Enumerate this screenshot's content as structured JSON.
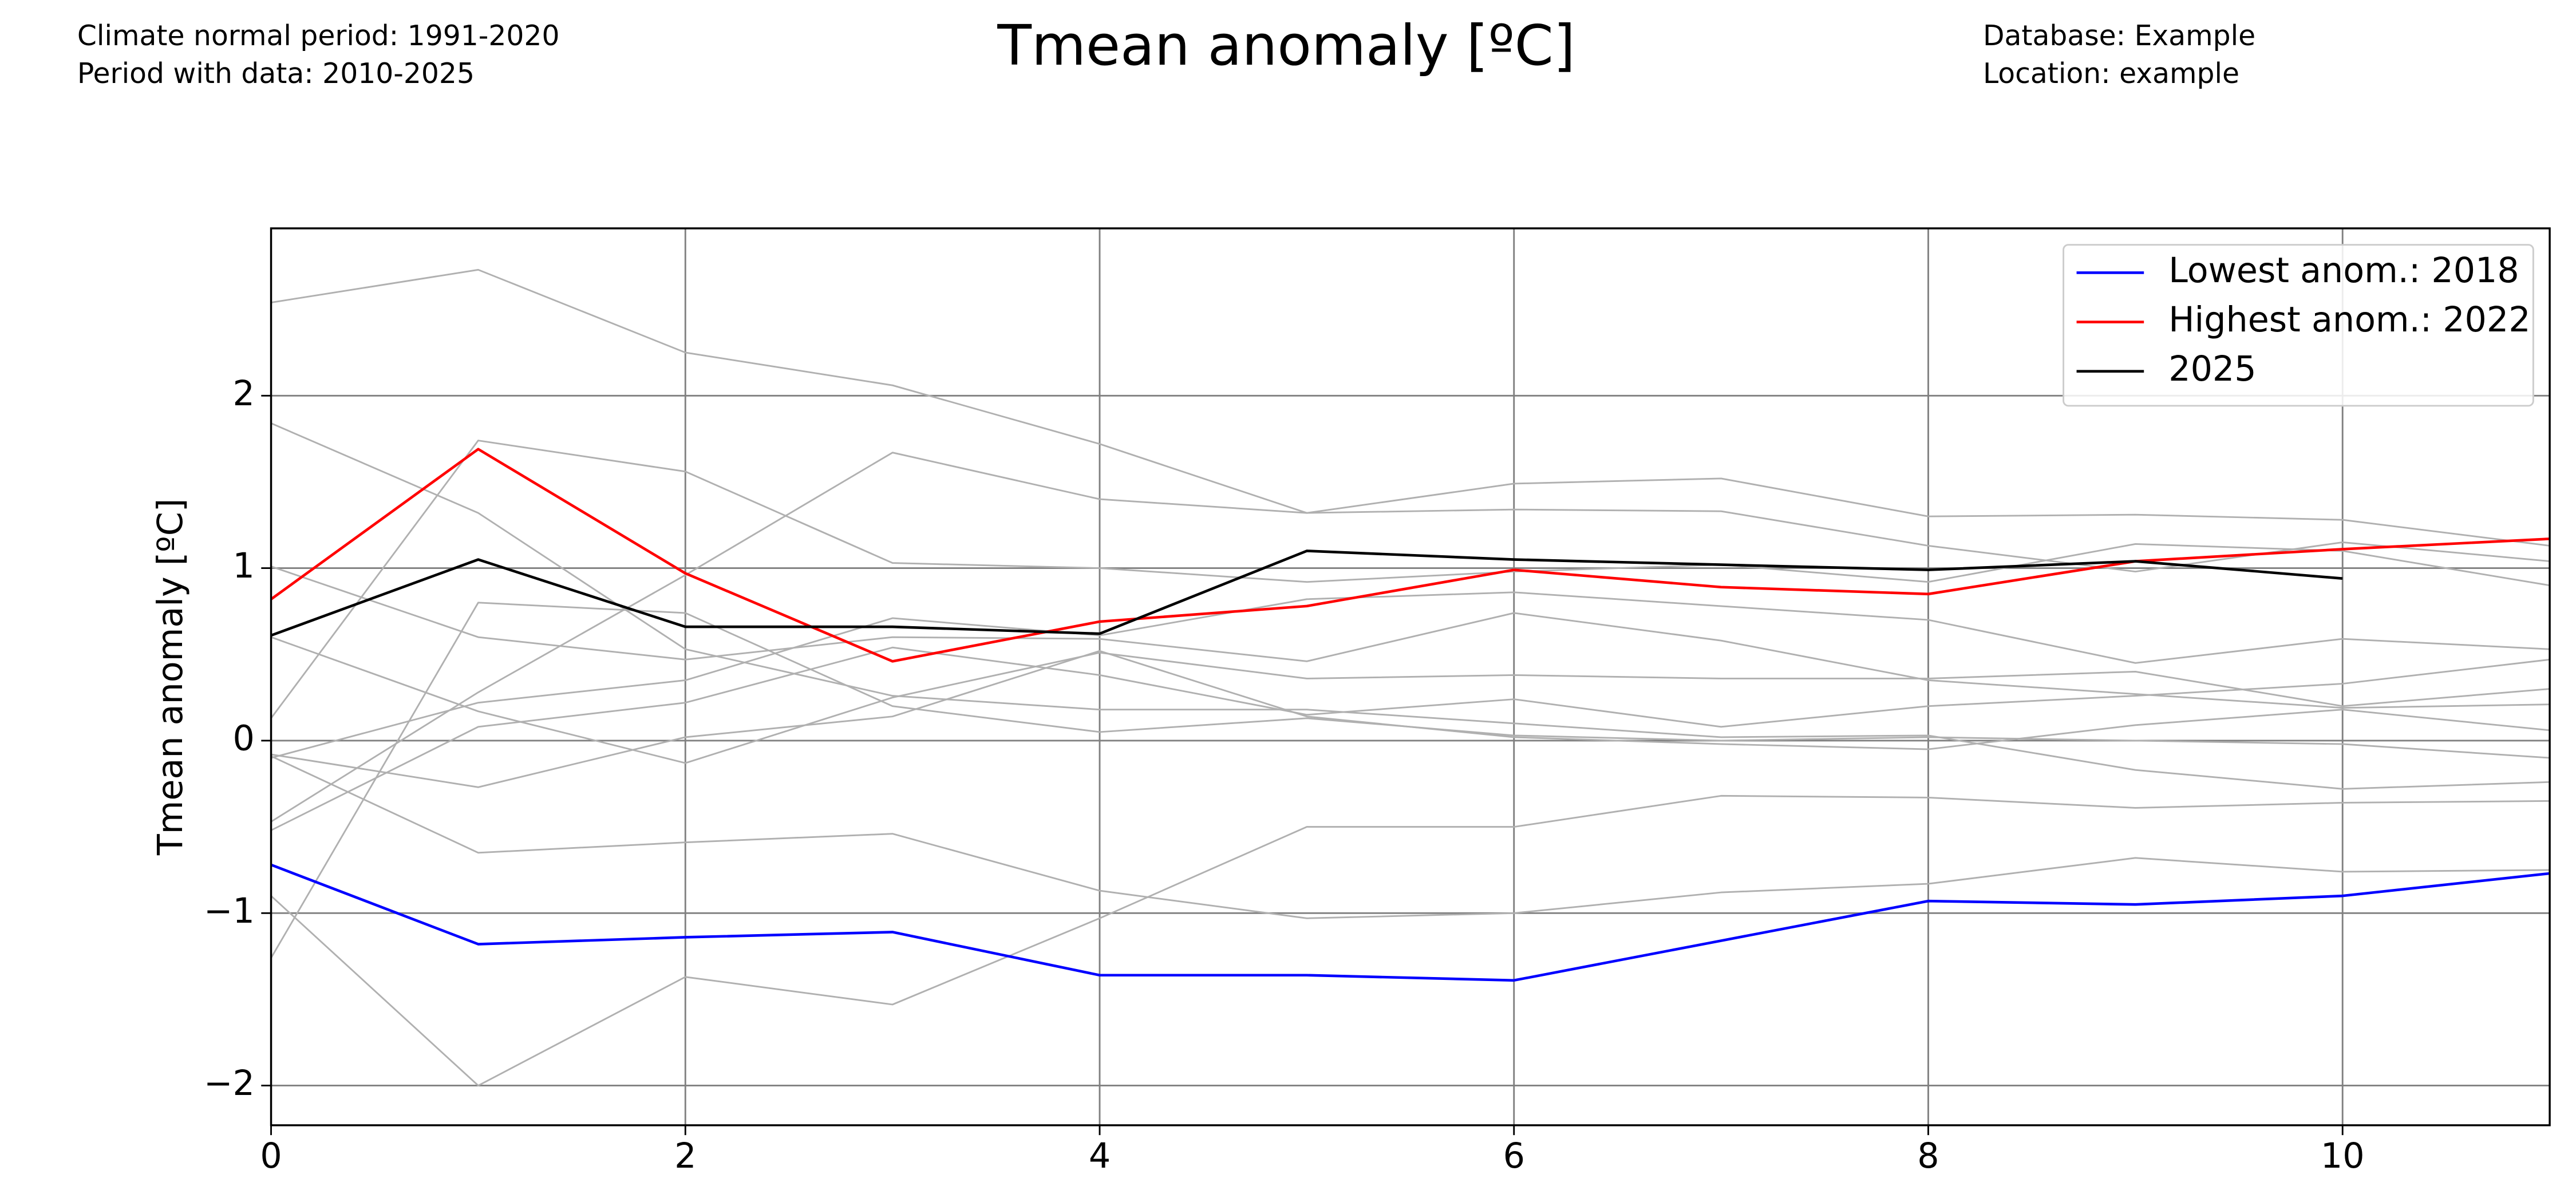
{
  "chart_data": {
    "type": "line",
    "title": "Tmean anomaly [ºC]",
    "notes_left": [
      "Climate normal period: 1991-2020",
      "Period with data: 2010-2025"
    ],
    "notes_right": [
      "Database: Example",
      "Location: example"
    ],
    "y_label": "Tmean anomaly [ºC]",
    "x": [
      0,
      1,
      2,
      3,
      4,
      5,
      6,
      7,
      8,
      9,
      10,
      11
    ],
    "xlim": [
      0,
      11
    ],
    "ylim": [
      -2.23,
      2.97
    ],
    "xticks": [
      0,
      2,
      4,
      6,
      8,
      10
    ],
    "yticks": [
      {
        "value": -2,
        "label": "−2"
      },
      {
        "value": -1,
        "label": "−1"
      },
      0,
      1,
      2
    ],
    "grid": true,
    "legend": "upper right",
    "series": [
      {
        "color": "#b0b0b0",
        "values": [
          2.54,
          2.73,
          2.25,
          2.06,
          1.72,
          1.32,
          1.49,
          1.52,
          1.3,
          1.31,
          1.28,
          1.13
        ]
      },
      {
        "color": "#b0b0b0",
        "values": [
          1.84,
          1.32,
          0.53,
          0.26,
          0.18,
          0.18,
          0.1,
          0.02,
          0.03,
          -0.17,
          -0.28,
          -0.24
        ]
      },
      {
        "color": "#b0b0b0",
        "values": [
          1.01,
          0.6,
          0.47,
          0.6,
          0.59,
          0.46,
          0.74,
          0.58,
          0.35,
          0.27,
          0.19,
          0.21
        ]
      },
      {
        "color": "#b0b0b0",
        "values": [
          0.6,
          0.17,
          -0.13,
          0.25,
          0.51,
          0.36,
          0.38,
          0.36,
          0.36,
          0.4,
          0.2,
          0.3
        ]
      },
      {
        "color": "#b0b0b0",
        "values": [
          0.13,
          1.74,
          1.56,
          1.03,
          1.0,
          0.92,
          0.98,
          1.02,
          0.92,
          1.14,
          1.1,
          0.9
        ]
      },
      {
        "color": "#b0b0b0",
        "values": [
          -0.1,
          0.22,
          0.35,
          0.71,
          0.61,
          0.82,
          0.86,
          0.78,
          0.7,
          0.45,
          0.59,
          0.53
        ]
      },
      {
        "color": "#b0b0b0",
        "values": [
          -0.08,
          -0.27,
          0.02,
          0.14,
          0.52,
          0.14,
          0.02,
          -0.02,
          -0.05,
          0.09,
          0.18,
          0.06
        ]
      },
      {
        "color": "#b0b0b0",
        "values": [
          -0.47,
          0.28,
          0.96,
          1.67,
          1.4,
          1.32,
          1.34,
          1.33,
          1.13,
          0.98,
          1.15,
          1.04
        ]
      },
      {
        "color": "#b0b0b0",
        "values": [
          -0.52,
          0.08,
          0.22,
          0.54,
          0.38,
          0.15,
          0.24,
          0.08,
          0.2,
          0.26,
          0.33,
          0.47
        ]
      },
      {
        "color": "#b0b0b0",
        "values": [
          -0.09,
          -0.65,
          -0.59,
          -0.54,
          -0.87,
          -1.03,
          -1.0,
          -0.88,
          -0.83,
          -0.68,
          -0.76,
          -0.75
        ]
      },
      {
        "color": "#b0b0b0",
        "values": [
          -0.9,
          -2.0,
          -1.37,
          -1.53,
          -1.03,
          -0.5,
          -0.5,
          -0.32,
          -0.33,
          -0.39,
          -0.36,
          -0.35
        ]
      },
      {
        "color": "#b0b0b0",
        "values": [
          -1.26,
          0.8,
          0.74,
          0.2,
          0.05,
          0.13,
          0.03,
          0.0,
          0.02,
          0.0,
          -0.02,
          -0.1
        ]
      },
      {
        "name": "Lowest anom.: 2018",
        "color": "#0000ff",
        "values": [
          -0.72,
          -1.18,
          -1.14,
          -1.11,
          -1.36,
          -1.36,
          -1.39,
          -1.16,
          -0.93,
          -0.95,
          -0.9,
          -0.77
        ]
      },
      {
        "name": "Highest anom.: 2022",
        "color": "#ff0000",
        "values": [
          0.82,
          1.69,
          0.97,
          0.46,
          0.69,
          0.78,
          0.99,
          0.89,
          0.85,
          1.04,
          1.11,
          1.17
        ]
      },
      {
        "name": "2025",
        "color": "#000000",
        "values": [
          0.61,
          1.05,
          0.66,
          0.66,
          0.62,
          1.1,
          1.05,
          1.02,
          0.99,
          1.04,
          0.94,
          null
        ]
      }
    ]
  }
}
